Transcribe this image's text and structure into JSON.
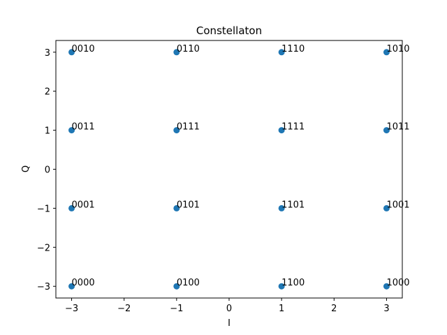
{
  "chart_data": {
    "type": "scatter",
    "title": "Constellaton",
    "xlabel": "I",
    "ylabel": "Q",
    "xlim": [
      -3.3,
      3.3
    ],
    "ylim": [
      -3.3,
      3.3
    ],
    "xticks": [
      -3,
      -2,
      -1,
      0,
      1,
      2,
      3
    ],
    "yticks": [
      -3,
      -2,
      -1,
      0,
      1,
      2,
      3
    ],
    "xtick_labels": [
      "−3",
      "−2",
      "−1",
      "0",
      "1",
      "2",
      "3"
    ],
    "ytick_labels": [
      "−3",
      "−2",
      "−1",
      "0",
      "1",
      "2",
      "3"
    ],
    "grid": false,
    "legend": "none",
    "marker_color": "#1f77b4",
    "points": [
      {
        "x": -3,
        "y": -3,
        "label": "0000"
      },
      {
        "x": -3,
        "y": -1,
        "label": "0001"
      },
      {
        "x": -3,
        "y": 3,
        "label": "0010"
      },
      {
        "x": -3,
        "y": 1,
        "label": "0011"
      },
      {
        "x": -1,
        "y": -3,
        "label": "0100"
      },
      {
        "x": -1,
        "y": -1,
        "label": "0101"
      },
      {
        "x": -1,
        "y": 3,
        "label": "0110"
      },
      {
        "x": -1,
        "y": 1,
        "label": "0111"
      },
      {
        "x": 3,
        "y": -3,
        "label": "1000"
      },
      {
        "x": 3,
        "y": -1,
        "label": "1001"
      },
      {
        "x": 3,
        "y": 3,
        "label": "1010"
      },
      {
        "x": 3,
        "y": 1,
        "label": "1011"
      },
      {
        "x": 1,
        "y": -3,
        "label": "1100"
      },
      {
        "x": 1,
        "y": -1,
        "label": "1101"
      },
      {
        "x": 1,
        "y": 3,
        "label": "1110"
      },
      {
        "x": 1,
        "y": 1,
        "label": "1111"
      }
    ]
  }
}
